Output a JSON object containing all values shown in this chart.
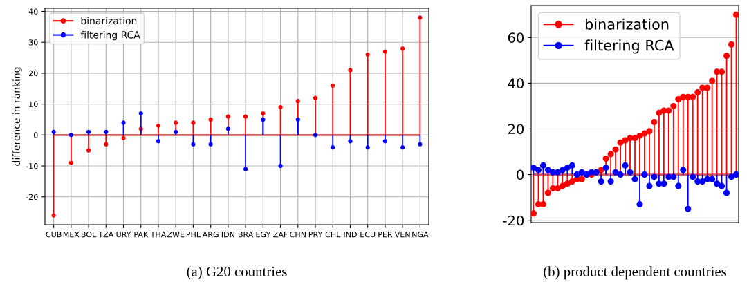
{
  "chart_data": [
    {
      "type": "lollipop",
      "ylabel": "difference in ranking",
      "categories": [
        "CUB",
        "MEX",
        "BOL",
        "TZA",
        "URY",
        "PAK",
        "THA",
        "ZWE",
        "PHL",
        "ARG",
        "IDN",
        "BRA",
        "EGY",
        "ZAF",
        "CHN",
        "PRY",
        "CHL",
        "IND",
        "ECU",
        "PER",
        "VEN",
        "NGA"
      ],
      "series": [
        {
          "name": "binarization",
          "color": "#ff0000",
          "values": [
            -26,
            -9,
            -5,
            -3,
            -1,
            2,
            3,
            4,
            4,
            5,
            6,
            6,
            7,
            9,
            11,
            12,
            16,
            21,
            26,
            27,
            28,
            38
          ]
        },
        {
          "name": "filtering RCA",
          "color": "#0000ff",
          "values": [
            1,
            0,
            1,
            1,
            4,
            7,
            -2,
            1,
            -3,
            -3,
            2,
            -11,
            5,
            -10,
            5,
            0,
            -4,
            -2,
            -4,
            -2,
            -4,
            -3
          ]
        }
      ],
      "ylim": [
        -29,
        41
      ],
      "yticks": [
        -20,
        -10,
        0,
        10,
        20,
        30,
        40
      ],
      "ref_lines": [
        {
          "axis": "y",
          "value": 0,
          "color": "#d65a5a"
        }
      ],
      "grid": true,
      "legend": "top left",
      "marker": "circle",
      "annotations": [
        "(a) G20 countries"
      ]
    },
    {
      "type": "lollipop",
      "categories": [
        null,
        null,
        null,
        null,
        null,
        null,
        null,
        null,
        null,
        null,
        null,
        null,
        null,
        null,
        null,
        null,
        null,
        null,
        null,
        null,
        null,
        null,
        null,
        null,
        null,
        null,
        null,
        null,
        null,
        null,
        null,
        null,
        null,
        null,
        null,
        null,
        null,
        null,
        null,
        null,
        null,
        null,
        null
      ],
      "series": [
        {
          "name": "binarization",
          "color": "#ff0000",
          "values": [
            -17,
            -13,
            -13,
            -8,
            -6,
            -6,
            -5,
            -4,
            -3,
            -2,
            -2,
            0,
            0,
            null,
            2,
            7,
            9,
            11,
            14,
            15,
            16,
            16,
            17,
            18,
            19,
            23,
            27,
            28,
            28,
            30,
            33,
            34,
            34,
            34,
            36,
            38,
            38,
            41,
            45,
            45,
            52,
            57,
            70
          ]
        },
        {
          "name": "filtering RCA",
          "color": "#0000ff",
          "values": [
            3,
            2,
            4,
            2,
            1,
            1,
            2,
            3,
            4,
            0,
            1,
            0,
            1,
            1,
            -3,
            3,
            -3,
            1,
            0,
            4,
            1,
            -2,
            -13,
            0,
            -5,
            -1,
            -4,
            -4,
            -1,
            -1,
            -5,
            2,
            -15,
            -1,
            -3,
            -3,
            -2,
            -2,
            -4,
            -5,
            -8,
            -1,
            0
          ]
        }
      ],
      "ylim": [
        -21,
        74
      ],
      "yticks": [
        -20,
        0,
        20,
        40,
        60
      ],
      "ref_lines": [
        {
          "axis": "y",
          "value": 0,
          "color": "#d65a5a"
        }
      ],
      "grid": "y",
      "legend": "top left",
      "marker": "circle",
      "tick_labels": "y",
      "annotations": [
        "(b) product dependent countries"
      ]
    }
  ]
}
